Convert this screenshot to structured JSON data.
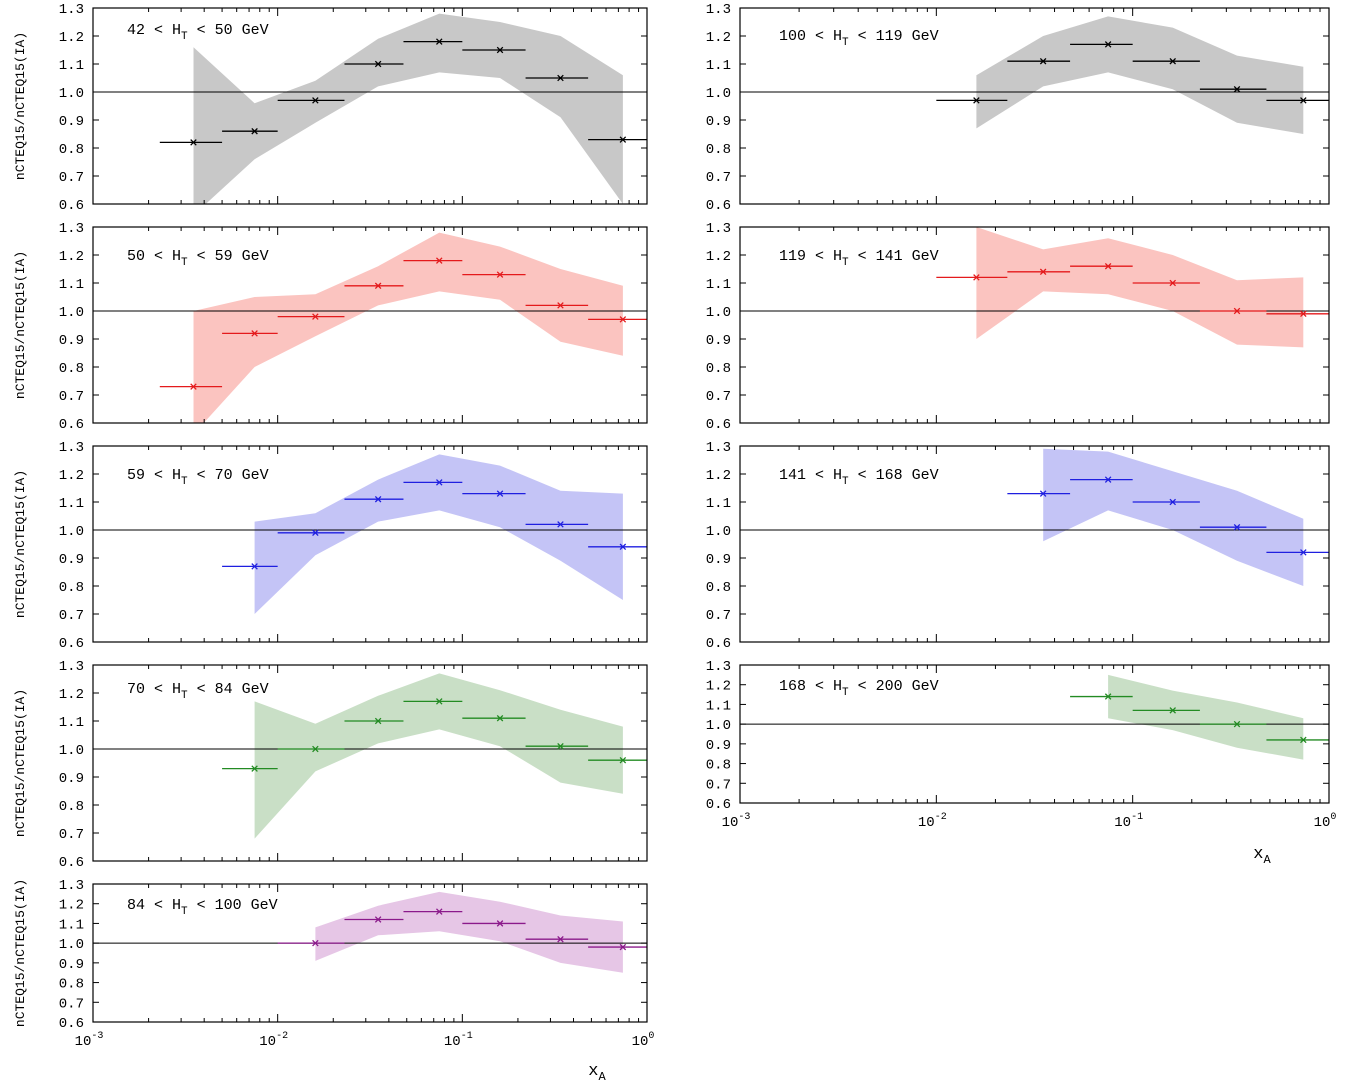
{
  "figure": {
    "xlabel_main": "x",
    "xlabel_sub": "A",
    "ylabel": "nCTEQ15/nCTEQ15(IA)",
    "yticks": [
      "0.6",
      "0.7",
      "0.8",
      "0.9",
      "1.0",
      "1.1",
      "1.2",
      "1.3"
    ],
    "xtick_base": "10",
    "xtick_exps": [
      "-3",
      "-2",
      "-1",
      "0"
    ],
    "colors": {
      "black": "#000000",
      "gray_band": "#c8c8c8",
      "red": "#e41a1c",
      "red_band": "#fbc4c0",
      "blue": "#1f1fe0",
      "blue_band": "#c4c4f6",
      "green": "#238b23",
      "green_band": "#c9dfc6",
      "purple": "#8b1a8b",
      "purple_band": "#e6c6e6"
    }
  },
  "chart_data": [
    {
      "type": "line",
      "label_pre": "42 < H",
      "label_sub": "T",
      "label_post": " < 50 GeV",
      "xscale": "log",
      "xlim": [
        0.001,
        1
      ],
      "ylim": [
        0.6,
        1.3
      ],
      "reference_line": 1.0,
      "color": "black",
      "band_color": "gray_band",
      "points": [
        {
          "x": 0.0035,
          "y": 0.82,
          "xlo": 0.0023,
          "xhi": 0.005
        },
        {
          "x": 0.0075,
          "y": 0.86,
          "xlo": 0.005,
          "xhi": 0.01
        },
        {
          "x": 0.016,
          "y": 0.97,
          "xlo": 0.01,
          "xhi": 0.023
        },
        {
          "x": 0.035,
          "y": 1.1,
          "xlo": 0.023,
          "xhi": 0.048
        },
        {
          "x": 0.075,
          "y": 1.18,
          "xlo": 0.048,
          "xhi": 0.1
        },
        {
          "x": 0.16,
          "y": 1.15,
          "xlo": 0.1,
          "xhi": 0.22
        },
        {
          "x": 0.34,
          "y": 1.05,
          "xlo": 0.22,
          "xhi": 0.48
        },
        {
          "x": 0.74,
          "y": 0.83,
          "xlo": 0.48,
          "xhi": 1.0
        }
      ],
      "band": [
        {
          "x": 0.0035,
          "lo": 0.56,
          "hi": 1.16
        },
        {
          "x": 0.0075,
          "lo": 0.76,
          "hi": 0.96
        },
        {
          "x": 0.016,
          "lo": 0.89,
          "hi": 1.04
        },
        {
          "x": 0.035,
          "lo": 1.02,
          "hi": 1.19
        },
        {
          "x": 0.075,
          "lo": 1.07,
          "hi": 1.28
        },
        {
          "x": 0.16,
          "lo": 1.05,
          "hi": 1.25
        },
        {
          "x": 0.34,
          "lo": 0.91,
          "hi": 1.2
        },
        {
          "x": 0.74,
          "lo": 0.6,
          "hi": 1.06
        }
      ]
    },
    {
      "type": "line",
      "label_pre": "50 < H",
      "label_sub": "T",
      "label_post": " < 59 GeV",
      "xscale": "log",
      "xlim": [
        0.001,
        1
      ],
      "ylim": [
        0.6,
        1.3
      ],
      "reference_line": 1.0,
      "color": "red",
      "band_color": "red_band",
      "points": [
        {
          "x": 0.0035,
          "y": 0.73,
          "xlo": 0.0023,
          "xhi": 0.005
        },
        {
          "x": 0.0075,
          "y": 0.92,
          "xlo": 0.005,
          "xhi": 0.01
        },
        {
          "x": 0.016,
          "y": 0.98,
          "xlo": 0.01,
          "xhi": 0.023
        },
        {
          "x": 0.035,
          "y": 1.09,
          "xlo": 0.023,
          "xhi": 0.048
        },
        {
          "x": 0.075,
          "y": 1.18,
          "xlo": 0.048,
          "xhi": 0.1
        },
        {
          "x": 0.16,
          "y": 1.13,
          "xlo": 0.1,
          "xhi": 0.22
        },
        {
          "x": 0.34,
          "y": 1.02,
          "xlo": 0.22,
          "xhi": 0.48
        },
        {
          "x": 0.74,
          "y": 0.97,
          "xlo": 0.48,
          "xhi": 1.0
        }
      ],
      "band": [
        {
          "x": 0.0035,
          "lo": 0.56,
          "hi": 1.0
        },
        {
          "x": 0.0075,
          "lo": 0.8,
          "hi": 1.05
        },
        {
          "x": 0.016,
          "lo": 0.91,
          "hi": 1.06
        },
        {
          "x": 0.035,
          "lo": 1.02,
          "hi": 1.16
        },
        {
          "x": 0.075,
          "lo": 1.07,
          "hi": 1.28
        },
        {
          "x": 0.16,
          "lo": 1.04,
          "hi": 1.23
        },
        {
          "x": 0.34,
          "lo": 0.89,
          "hi": 1.15
        },
        {
          "x": 0.74,
          "lo": 0.84,
          "hi": 1.09
        }
      ]
    },
    {
      "type": "line",
      "label_pre": "59 < H",
      "label_sub": "T",
      "label_post": " < 70 GeV",
      "xscale": "log",
      "xlim": [
        0.001,
        1
      ],
      "ylim": [
        0.6,
        1.3
      ],
      "reference_line": 1.0,
      "color": "blue",
      "band_color": "blue_band",
      "points": [
        {
          "x": 0.0075,
          "y": 0.87,
          "xlo": 0.005,
          "xhi": 0.01
        },
        {
          "x": 0.016,
          "y": 0.99,
          "xlo": 0.01,
          "xhi": 0.023
        },
        {
          "x": 0.035,
          "y": 1.11,
          "xlo": 0.023,
          "xhi": 0.048
        },
        {
          "x": 0.075,
          "y": 1.17,
          "xlo": 0.048,
          "xhi": 0.1
        },
        {
          "x": 0.16,
          "y": 1.13,
          "xlo": 0.1,
          "xhi": 0.22
        },
        {
          "x": 0.34,
          "y": 1.02,
          "xlo": 0.22,
          "xhi": 0.48
        },
        {
          "x": 0.74,
          "y": 0.94,
          "xlo": 0.48,
          "xhi": 1.0
        }
      ],
      "band": [
        {
          "x": 0.0075,
          "lo": 0.7,
          "hi": 1.03
        },
        {
          "x": 0.016,
          "lo": 0.91,
          "hi": 1.06
        },
        {
          "x": 0.035,
          "lo": 1.03,
          "hi": 1.18
        },
        {
          "x": 0.075,
          "lo": 1.07,
          "hi": 1.27
        },
        {
          "x": 0.16,
          "lo": 1.01,
          "hi": 1.23
        },
        {
          "x": 0.34,
          "lo": 0.89,
          "hi": 1.14
        },
        {
          "x": 0.74,
          "lo": 0.75,
          "hi": 1.13
        }
      ]
    },
    {
      "type": "line",
      "label_pre": "70 < H",
      "label_sub": "T",
      "label_post": " < 84 GeV",
      "xscale": "log",
      "xlim": [
        0.001,
        1
      ],
      "ylim": [
        0.6,
        1.3
      ],
      "reference_line": 1.0,
      "color": "green",
      "band_color": "green_band",
      "points": [
        {
          "x": 0.0075,
          "y": 0.93,
          "xlo": 0.005,
          "xhi": 0.01
        },
        {
          "x": 0.016,
          "y": 1.0,
          "xlo": 0.01,
          "xhi": 0.023
        },
        {
          "x": 0.035,
          "y": 1.1,
          "xlo": 0.023,
          "xhi": 0.048
        },
        {
          "x": 0.075,
          "y": 1.17,
          "xlo": 0.048,
          "xhi": 0.1
        },
        {
          "x": 0.16,
          "y": 1.11,
          "xlo": 0.1,
          "xhi": 0.22
        },
        {
          "x": 0.34,
          "y": 1.01,
          "xlo": 0.22,
          "xhi": 0.48
        },
        {
          "x": 0.74,
          "y": 0.96,
          "xlo": 0.48,
          "xhi": 1.0
        }
      ],
      "band": [
        {
          "x": 0.0075,
          "lo": 0.68,
          "hi": 1.17
        },
        {
          "x": 0.016,
          "lo": 0.92,
          "hi": 1.09
        },
        {
          "x": 0.035,
          "lo": 1.02,
          "hi": 1.19
        },
        {
          "x": 0.075,
          "lo": 1.07,
          "hi": 1.27
        },
        {
          "x": 0.16,
          "lo": 1.01,
          "hi": 1.21
        },
        {
          "x": 0.34,
          "lo": 0.88,
          "hi": 1.14
        },
        {
          "x": 0.74,
          "lo": 0.84,
          "hi": 1.08
        }
      ]
    },
    {
      "type": "line",
      "label_pre": "84 < H",
      "label_sub": "T",
      "label_post": " < 100 GeV",
      "xscale": "log",
      "xlim": [
        0.001,
        1
      ],
      "ylim": [
        0.6,
        1.3
      ],
      "reference_line": 1.0,
      "color": "purple",
      "band_color": "purple_band",
      "points": [
        {
          "x": 0.016,
          "y": 1.0,
          "xlo": 0.01,
          "xhi": 0.023
        },
        {
          "x": 0.035,
          "y": 1.12,
          "xlo": 0.023,
          "xhi": 0.048
        },
        {
          "x": 0.075,
          "y": 1.16,
          "xlo": 0.048,
          "xhi": 0.1
        },
        {
          "x": 0.16,
          "y": 1.1,
          "xlo": 0.1,
          "xhi": 0.22
        },
        {
          "x": 0.34,
          "y": 1.02,
          "xlo": 0.22,
          "xhi": 0.48
        },
        {
          "x": 0.74,
          "y": 0.98,
          "xlo": 0.48,
          "xhi": 1.0
        }
      ],
      "band": [
        {
          "x": 0.016,
          "lo": 0.91,
          "hi": 1.08
        },
        {
          "x": 0.035,
          "lo": 1.04,
          "hi": 1.19
        },
        {
          "x": 0.075,
          "lo": 1.06,
          "hi": 1.26
        },
        {
          "x": 0.16,
          "lo": 1.01,
          "hi": 1.21
        },
        {
          "x": 0.34,
          "lo": 0.9,
          "hi": 1.14
        },
        {
          "x": 0.74,
          "lo": 0.85,
          "hi": 1.11
        }
      ]
    },
    {
      "type": "line",
      "label_pre": "100 < H",
      "label_sub": "T",
      "label_post": " < 119 GeV",
      "xscale": "log",
      "xlim": [
        0.001,
        1
      ],
      "ylim": [
        0.6,
        1.3
      ],
      "reference_line": 1.0,
      "color": "black",
      "band_color": "gray_band",
      "points": [
        {
          "x": 0.016,
          "y": 0.97,
          "xlo": 0.01,
          "xhi": 0.023
        },
        {
          "x": 0.035,
          "y": 1.11,
          "xlo": 0.023,
          "xhi": 0.048
        },
        {
          "x": 0.075,
          "y": 1.17,
          "xlo": 0.048,
          "xhi": 0.1
        },
        {
          "x": 0.16,
          "y": 1.11,
          "xlo": 0.1,
          "xhi": 0.22
        },
        {
          "x": 0.34,
          "y": 1.01,
          "xlo": 0.22,
          "xhi": 0.48
        },
        {
          "x": 0.74,
          "y": 0.97,
          "xlo": 0.48,
          "xhi": 1.0
        }
      ],
      "band": [
        {
          "x": 0.016,
          "lo": 0.87,
          "hi": 1.06
        },
        {
          "x": 0.035,
          "lo": 1.02,
          "hi": 1.2
        },
        {
          "x": 0.075,
          "lo": 1.07,
          "hi": 1.27
        },
        {
          "x": 0.16,
          "lo": 1.01,
          "hi": 1.23
        },
        {
          "x": 0.34,
          "lo": 0.89,
          "hi": 1.13
        },
        {
          "x": 0.74,
          "lo": 0.85,
          "hi": 1.09
        }
      ]
    },
    {
      "type": "line",
      "label_pre": "119 < H",
      "label_sub": "T",
      "label_post": " < 141 GeV",
      "xscale": "log",
      "xlim": [
        0.001,
        1
      ],
      "ylim": [
        0.6,
        1.3
      ],
      "reference_line": 1.0,
      "color": "red",
      "band_color": "red_band",
      "points": [
        {
          "x": 0.016,
          "y": 1.12,
          "xlo": 0.01,
          "xhi": 0.023
        },
        {
          "x": 0.035,
          "y": 1.14,
          "xlo": 0.023,
          "xhi": 0.048
        },
        {
          "x": 0.075,
          "y": 1.16,
          "xlo": 0.048,
          "xhi": 0.1
        },
        {
          "x": 0.16,
          "y": 1.1,
          "xlo": 0.1,
          "xhi": 0.22
        },
        {
          "x": 0.34,
          "y": 1.0,
          "xlo": 0.22,
          "xhi": 0.48
        },
        {
          "x": 0.74,
          "y": 0.99,
          "xlo": 0.48,
          "xhi": 1.0
        }
      ],
      "band": [
        {
          "x": 0.016,
          "lo": 0.9,
          "hi": 1.3
        },
        {
          "x": 0.035,
          "lo": 1.07,
          "hi": 1.22
        },
        {
          "x": 0.075,
          "lo": 1.06,
          "hi": 1.26
        },
        {
          "x": 0.16,
          "lo": 1.0,
          "hi": 1.2
        },
        {
          "x": 0.34,
          "lo": 0.88,
          "hi": 1.11
        },
        {
          "x": 0.74,
          "lo": 0.87,
          "hi": 1.12
        }
      ]
    },
    {
      "type": "line",
      "label_pre": "141 < H",
      "label_sub": "T",
      "label_post": " < 168 GeV",
      "xscale": "log",
      "xlim": [
        0.001,
        1
      ],
      "ylim": [
        0.6,
        1.3
      ],
      "reference_line": 1.0,
      "color": "blue",
      "band_color": "blue_band",
      "points": [
        {
          "x": 0.035,
          "y": 1.13,
          "xlo": 0.023,
          "xhi": 0.048
        },
        {
          "x": 0.075,
          "y": 1.18,
          "xlo": 0.048,
          "xhi": 0.1
        },
        {
          "x": 0.16,
          "y": 1.1,
          "xlo": 0.1,
          "xhi": 0.22
        },
        {
          "x": 0.34,
          "y": 1.01,
          "xlo": 0.22,
          "xhi": 0.48
        },
        {
          "x": 0.74,
          "y": 0.92,
          "xlo": 0.48,
          "xhi": 1.0
        }
      ],
      "band": [
        {
          "x": 0.035,
          "lo": 0.96,
          "hi": 1.29
        },
        {
          "x": 0.075,
          "lo": 1.07,
          "hi": 1.28
        },
        {
          "x": 0.16,
          "lo": 1.0,
          "hi": 1.21
        },
        {
          "x": 0.34,
          "lo": 0.89,
          "hi": 1.14
        },
        {
          "x": 0.74,
          "lo": 0.8,
          "hi": 1.04
        }
      ]
    },
    {
      "type": "line",
      "label_pre": "168 < H",
      "label_sub": "T",
      "label_post": " < 200 GeV",
      "xscale": "log",
      "xlim": [
        0.001,
        1
      ],
      "ylim": [
        0.6,
        1.3
      ],
      "reference_line": 1.0,
      "color": "green",
      "band_color": "green_band",
      "points": [
        {
          "x": 0.075,
          "y": 1.14,
          "xlo": 0.048,
          "xhi": 0.1
        },
        {
          "x": 0.16,
          "y": 1.07,
          "xlo": 0.1,
          "xhi": 0.22
        },
        {
          "x": 0.34,
          "y": 1.0,
          "xlo": 0.22,
          "xhi": 0.48
        },
        {
          "x": 0.74,
          "y": 0.92,
          "xlo": 0.48,
          "xhi": 1.0
        }
      ],
      "band": [
        {
          "x": 0.075,
          "lo": 1.03,
          "hi": 1.25
        },
        {
          "x": 0.16,
          "lo": 0.97,
          "hi": 1.17
        },
        {
          "x": 0.34,
          "lo": 0.88,
          "hi": 1.11
        },
        {
          "x": 0.74,
          "lo": 0.82,
          "hi": 1.03
        }
      ]
    }
  ]
}
